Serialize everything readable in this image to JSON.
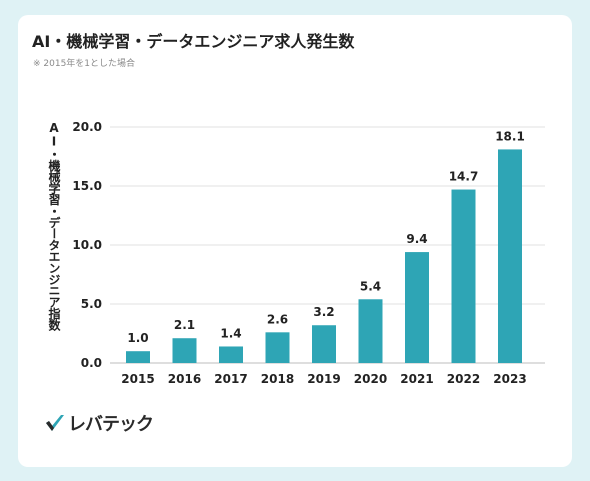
{
  "chart_data": {
    "type": "bar",
    "title": "AI・機械学習・データエンジニア求人発生数",
    "subtitle": "※ 2015年を1とした場合",
    "ylabel": "AI・機械学習・データエンジニア指数",
    "xlabel": "",
    "categories": [
      "2015",
      "2016",
      "2017",
      "2018",
      "2019",
      "2020",
      "2021",
      "2022",
      "2023"
    ],
    "values": [
      1.0,
      2.1,
      1.4,
      2.6,
      3.2,
      5.4,
      9.4,
      14.7,
      18.1
    ],
    "value_labels": [
      "1.0",
      "2.1",
      "1.4",
      "2.6",
      "3.2",
      "5.4",
      "9.4",
      "14.7",
      "18.1"
    ],
    "y_ticks": [
      0,
      5,
      10,
      15,
      20
    ],
    "y_tick_labels": [
      "0.0",
      "5.0",
      "10.0",
      "15.0",
      "20.0"
    ],
    "ylim": [
      0,
      20
    ],
    "grid": true,
    "bar_color": "#2ea5b5"
  },
  "brand": {
    "logo_text": "レバテック",
    "logo_check_color": "#2ea5b5",
    "logo_dark_color": "#2a2a2a"
  },
  "background_color": "#dff2f5"
}
